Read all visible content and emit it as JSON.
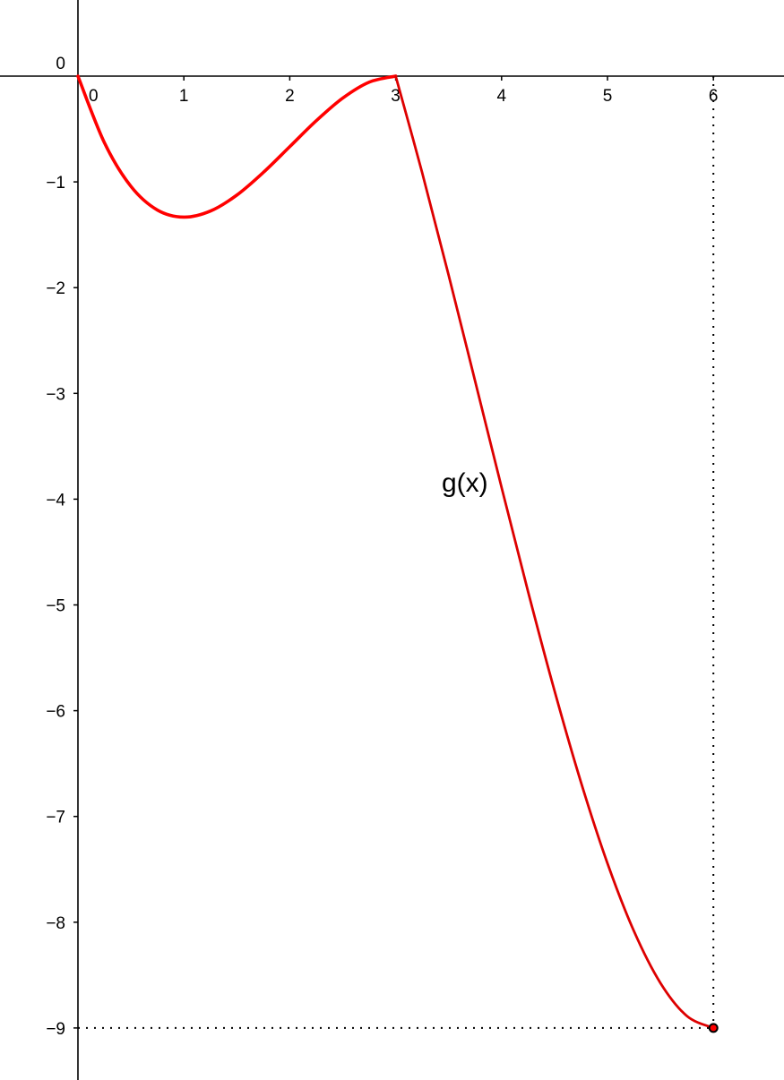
{
  "chart_data": {
    "type": "line",
    "title": "",
    "xlabel": "",
    "ylabel": "",
    "xlim": [
      -0.73,
      6.67
    ],
    "ylim": [
      -9.5,
      0.72
    ],
    "grid": false,
    "x_ticks": [
      "0",
      "1",
      "2",
      "3",
      "4",
      "5",
      "6"
    ],
    "y_ticks": [
      "0",
      "−1",
      "−2",
      "−3",
      "−4",
      "−5",
      "−6",
      "−7",
      "−8",
      "−9"
    ],
    "function_label": "g(x)",
    "series": [
      {
        "color": "#ff0000",
        "x": [
          0,
          0.25,
          0.5,
          0.75,
          1,
          1.25,
          1.5,
          1.75,
          2,
          2.25,
          2.5,
          2.75,
          3
        ],
        "y": [
          0,
          -0.63,
          -1.042,
          -1.266,
          -1.333,
          -1.276,
          -1.125,
          -0.911,
          -0.667,
          -0.422,
          -0.208,
          -0.057,
          0
        ]
      },
      {
        "color": "#dd0000",
        "x": [
          3,
          3.25,
          3.5,
          3.75,
          4,
          4.25,
          4.5,
          4.75,
          5,
          5.25,
          5.5,
          5.75,
          6
        ],
        "y": [
          0,
          -0.912,
          -1.882,
          -2.883,
          -3.889,
          -4.874,
          -5.812,
          -6.678,
          -7.444,
          -8.085,
          -8.575,
          -8.887,
          -9
        ]
      }
    ],
    "point": {
      "x": 6,
      "y": -9,
      "color": "#ff0000"
    },
    "guide_lines": "dotted from point (6, -9) to both axes",
    "axis_color": "#000000"
  }
}
